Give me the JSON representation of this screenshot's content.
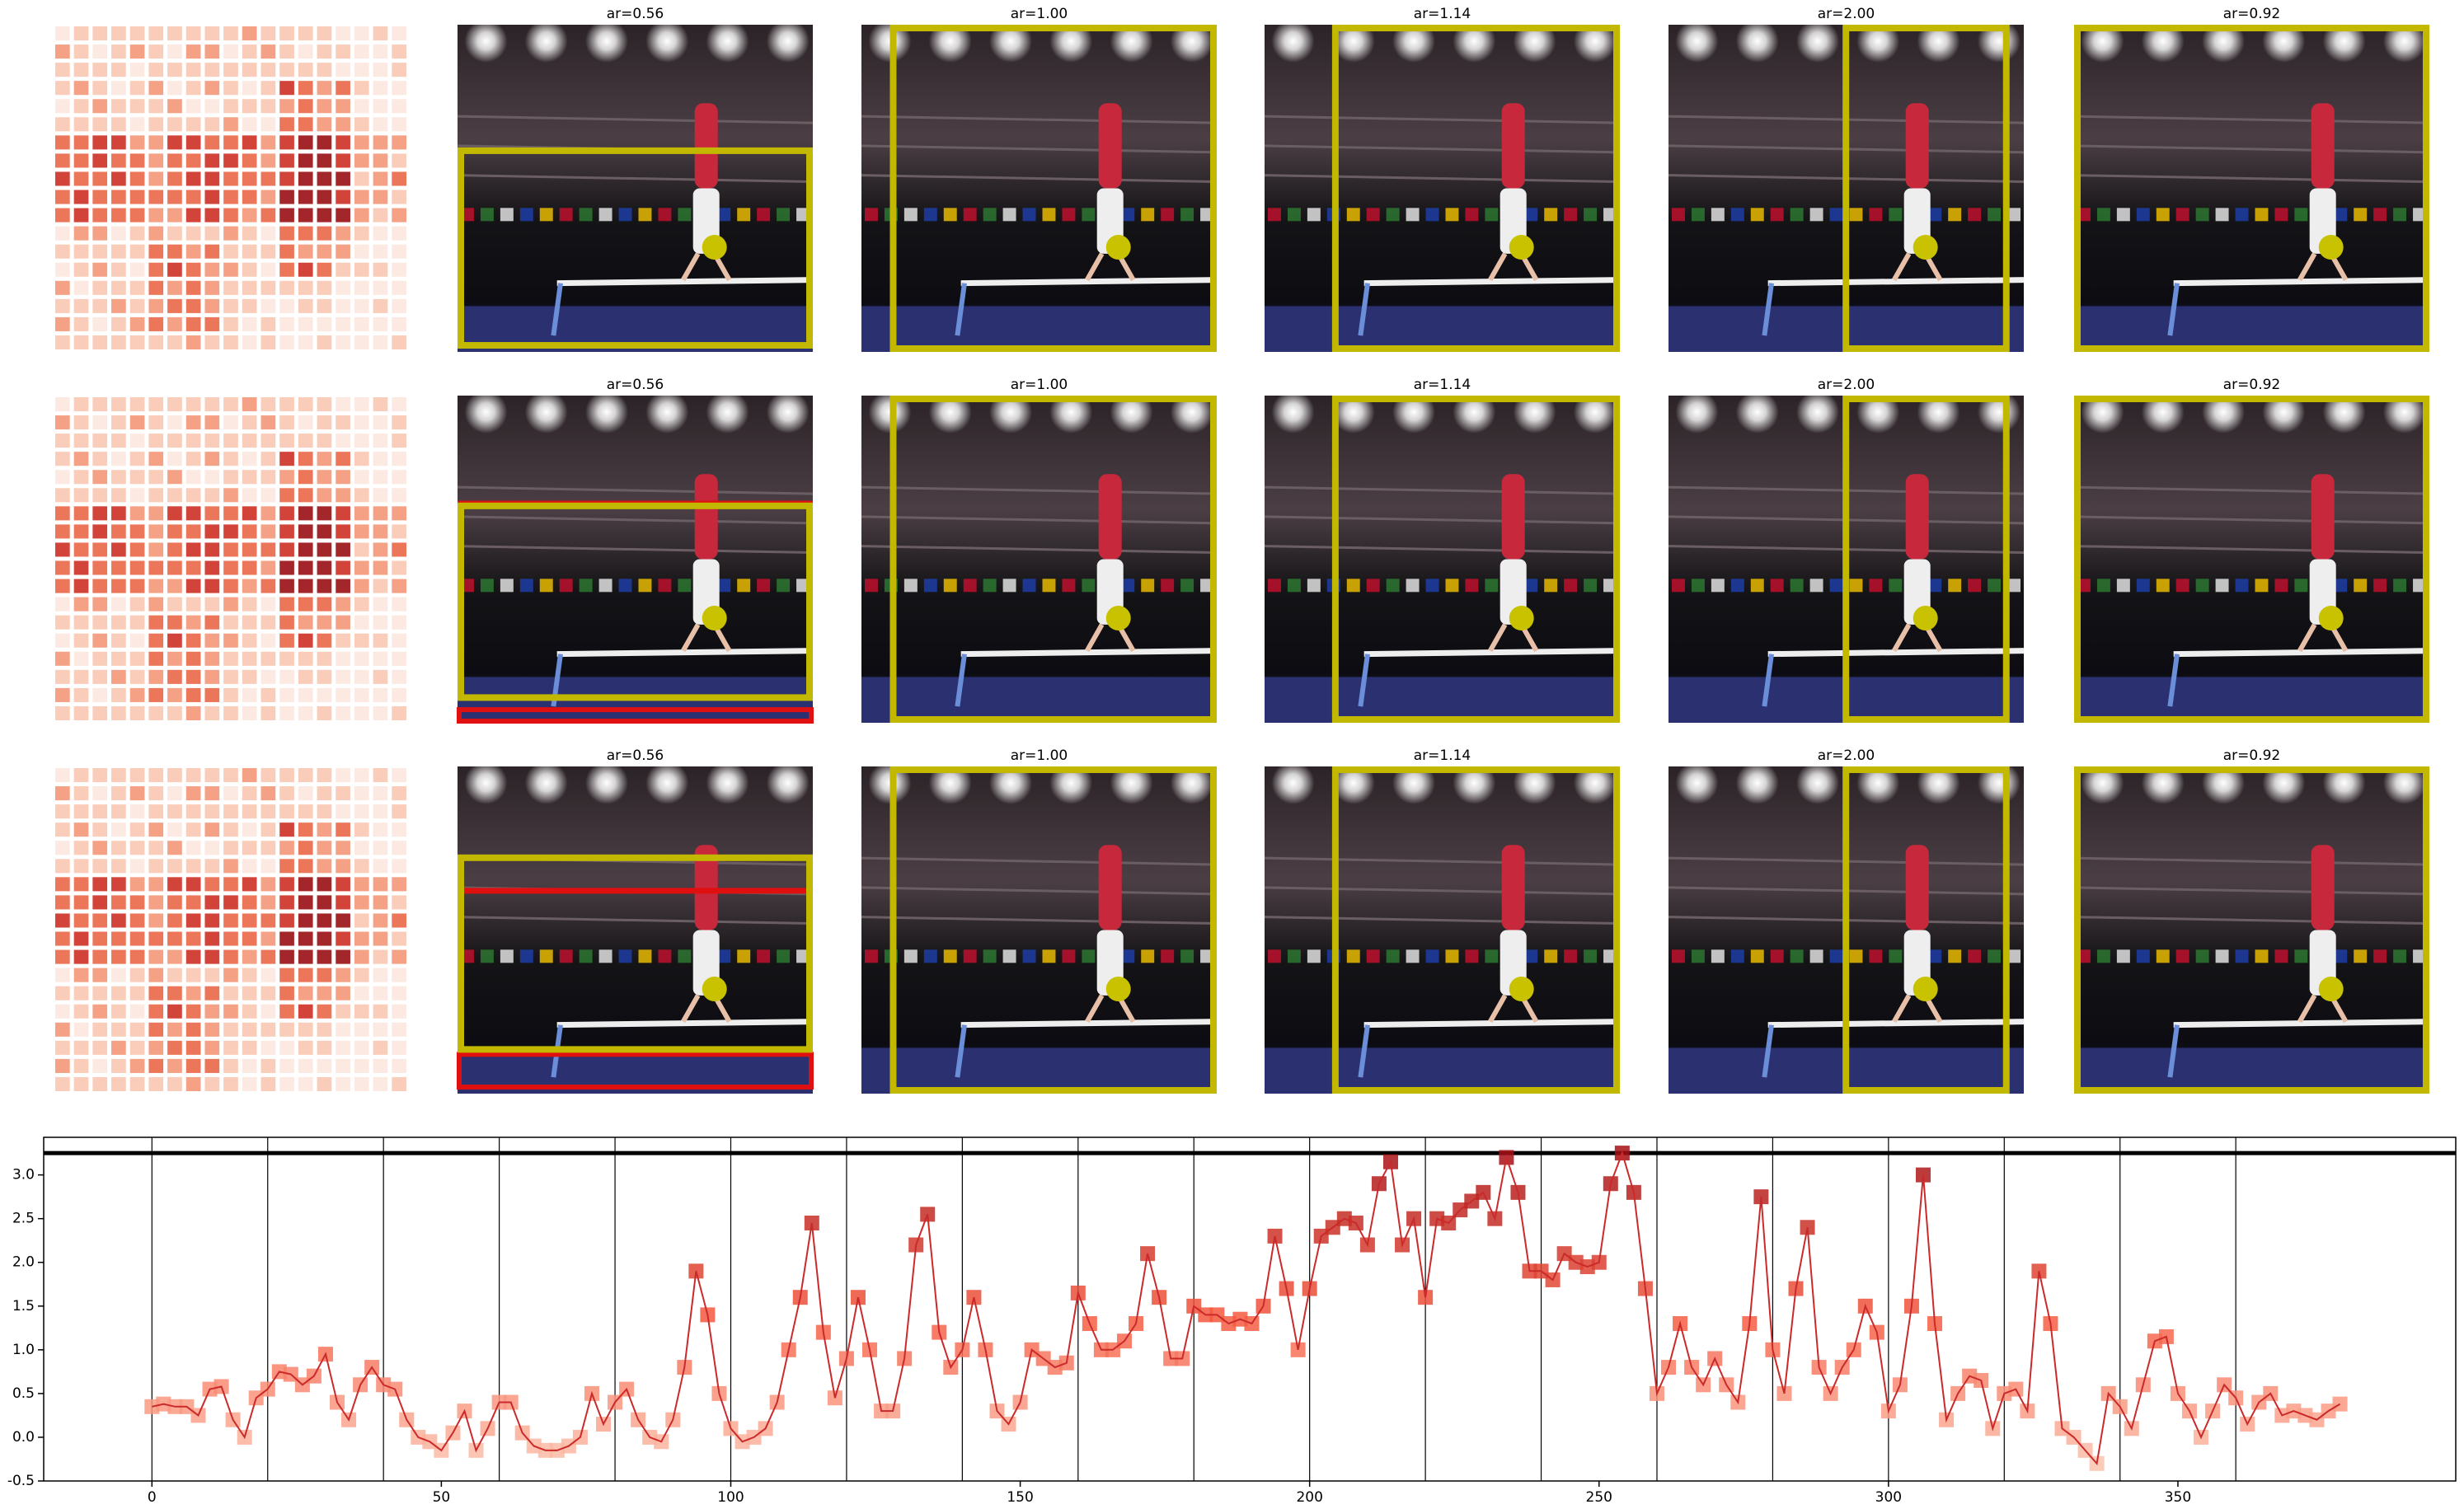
{
  "panels": {
    "titles": [
      [
        "ar=0.56",
        "ar=1.00",
        "ar=1.14",
        "ar=2.00",
        "ar=0.92"
      ],
      [
        "ar=0.56",
        "ar=1.00",
        "ar=1.14",
        "ar=2.00",
        "ar=0.92"
      ],
      [
        "ar=0.56",
        "ar=1.00",
        "ar=1.14",
        "ar=2.00",
        "ar=0.92"
      ]
    ]
  },
  "chart_data": {
    "type": "line",
    "x": [
      0,
      2,
      4,
      6,
      8,
      10,
      12,
      14,
      16,
      18,
      20,
      22,
      24,
      26,
      28,
      30,
      32,
      34,
      36,
      38,
      40,
      42,
      44,
      46,
      48,
      50,
      52,
      54,
      56,
      58,
      60,
      62,
      64,
      66,
      68,
      70,
      72,
      74,
      76,
      78,
      80,
      82,
      84,
      86,
      88,
      90,
      92,
      94,
      96,
      98,
      100,
      102,
      104,
      106,
      108,
      110,
      112,
      114,
      116,
      118,
      120,
      122,
      124,
      126,
      128,
      130,
      132,
      134,
      136,
      138,
      140,
      142,
      144,
      146,
      148,
      150,
      152,
      154,
      156,
      158,
      160,
      162,
      164,
      166,
      168,
      170,
      172,
      174,
      176,
      178,
      180,
      182,
      184,
      186,
      188,
      190,
      192,
      194,
      196,
      198,
      200,
      202,
      204,
      206,
      208,
      210,
      212,
      214,
      216,
      218,
      220,
      222,
      224,
      226,
      228,
      230,
      232,
      234,
      236,
      238,
      240,
      242,
      244,
      246,
      248,
      250,
      252,
      254,
      256,
      258,
      260,
      262,
      264,
      266,
      268,
      270,
      272,
      274,
      276,
      278,
      280,
      282,
      284,
      286,
      288,
      290,
      292,
      294,
      296,
      298,
      300,
      302,
      304,
      306,
      308,
      310,
      312,
      314,
      316,
      318,
      320,
      322,
      324,
      326,
      328,
      330,
      332,
      334,
      336,
      338,
      340,
      342,
      344,
      346,
      348,
      350,
      352,
      354,
      356,
      358,
      360,
      362,
      364,
      366,
      368,
      370,
      372,
      374,
      376,
      378
    ],
    "series": [
      {
        "color": "#cb2a2a",
        "values": [
          0.35,
          0.38,
          0.35,
          0.35,
          0.25,
          0.55,
          0.58,
          0.2,
          0.0,
          0.45,
          0.55,
          0.75,
          0.72,
          0.6,
          0.7,
          0.95,
          0.4,
          0.2,
          0.6,
          0.8,
          0.6,
          0.55,
          0.2,
          0.0,
          -0.05,
          -0.15,
          0.05,
          0.3,
          -0.15,
          0.1,
          0.4,
          0.4,
          0.05,
          -0.1,
          -0.15,
          -0.15,
          -0.1,
          0.0,
          0.5,
          0.15,
          0.4,
          0.55,
          0.2,
          0.0,
          -0.05,
          0.2,
          0.8,
          1.9,
          1.4,
          0.5,
          0.1,
          -0.05,
          0.0,
          0.1,
          0.4,
          1.0,
          1.6,
          2.45,
          1.2,
          0.45,
          0.9,
          1.6,
          1.0,
          0.3,
          0.3,
          0.9,
          2.2,
          2.55,
          1.2,
          0.8,
          1.0,
          1.6,
          1.0,
          0.3,
          0.15,
          0.4,
          1.0,
          0.9,
          0.8,
          0.85,
          1.65,
          1.3,
          1.0,
          1.0,
          1.1,
          1.3,
          2.1,
          1.6,
          0.9,
          0.9,
          1.5,
          1.4,
          1.4,
          1.3,
          1.35,
          1.3,
          1.5,
          2.3,
          1.7,
          1.0,
          1.7,
          2.3,
          2.4,
          2.5,
          2.45,
          2.2,
          2.9,
          3.15,
          2.2,
          2.5,
          1.6,
          2.5,
          2.45,
          2.6,
          2.7,
          2.8,
          2.5,
          3.2,
          2.8,
          1.9,
          1.9,
          1.8,
          2.1,
          2.0,
          1.95,
          2.0,
          2.9,
          3.25,
          2.8,
          1.7,
          0.5,
          0.8,
          1.3,
          0.8,
          0.6,
          0.9,
          0.6,
          0.4,
          1.3,
          2.75,
          1.0,
          0.5,
          1.7,
          2.4,
          0.8,
          0.5,
          0.8,
          1.0,
          1.5,
          1.2,
          0.3,
          0.6,
          1.5,
          3.0,
          1.3,
          0.2,
          0.5,
          0.7,
          0.65,
          0.1,
          0.5,
          0.55,
          0.3,
          1.9,
          1.3,
          0.1,
          0.0,
          -0.15,
          -0.3,
          0.5,
          0.35,
          0.1,
          0.6,
          1.1,
          1.15,
          0.5,
          0.3,
          0.0,
          0.3,
          0.6,
          0.45,
          0.15,
          0.4,
          0.5,
          0.25,
          0.3,
          0.25,
          0.2,
          0.3,
          0.38
        ]
      }
    ],
    "marker_colors": [
      "#fdd0bc",
      "#f5593f",
      "#a50f15"
    ],
    "xlim": [
      -18.7,
      398
    ],
    "ylim": [
      -0.5,
      3.43
    ],
    "xticks": [
      0,
      50,
      100,
      150,
      200,
      250,
      300,
      350
    ],
    "yticks": [
      {
        "value": -0.5,
        "label": "-0.5"
      },
      {
        "value": 0,
        "label": "0.0"
      },
      {
        "value": 0.5,
        "label": "0.5"
      },
      {
        "value": 1,
        "label": "1.0"
      },
      {
        "value": 1.5,
        "label": "1.5"
      },
      {
        "value": 2,
        "label": "2.0"
      },
      {
        "value": 2.5,
        "label": "2.5"
      },
      {
        "value": 3,
        "label": "3.0"
      }
    ],
    "vlines": [
      0,
      20,
      40,
      60,
      80,
      100,
      120,
      140,
      160,
      180,
      200,
      220,
      240,
      260,
      280,
      300,
      320,
      340,
      360
    ],
    "hline": 3.25
  }
}
